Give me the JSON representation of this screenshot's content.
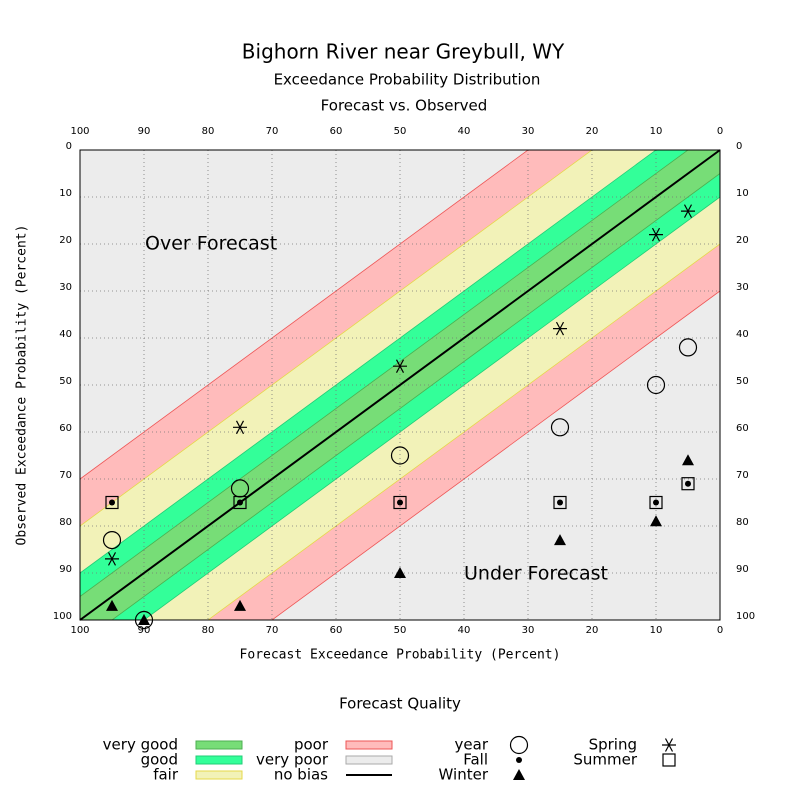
{
  "chart_data": {
    "type": "scatter",
    "title": "Bighorn River near Greybull, WY",
    "subtitle": [
      "Exceedance Probability Distribution",
      "Forecast vs. Observed"
    ],
    "xlabel": "Forecast Exceedance Probability (Percent)",
    "ylabel": "Observed Exceedance Probability (Percent)",
    "annotations": [
      "Over Forecast",
      "Under Forecast"
    ],
    "xlim": [
      100,
      0
    ],
    "ylim": [
      100,
      0
    ],
    "xticks": [
      100,
      90,
      80,
      70,
      60,
      50,
      40,
      30,
      20,
      10,
      0
    ],
    "yticks": [
      0,
      10,
      20,
      30,
      40,
      50,
      60,
      70,
      80,
      90,
      100
    ],
    "grid": true,
    "legend_title": "Forecast Quality",
    "bands": [
      {
        "name": "very good",
        "color": "#77dd77",
        "edge": "#4caf50",
        "width": 5
      },
      {
        "name": "good",
        "color": "#33ff99",
        "edge": "#22cc77",
        "width": 10
      },
      {
        "name": "fair",
        "color": "#f2f2b8",
        "edge": "#e6d84a",
        "width": 20
      },
      {
        "name": "poor",
        "color": "#ffbbbb",
        "edge": "#ee5555",
        "width": 30
      }
    ],
    "background": {
      "name": "very poor",
      "color": "#ececec"
    },
    "diagonal": {
      "name": "no bias",
      "color": "#000000"
    },
    "series": [
      {
        "name": "year",
        "marker": "circle",
        "x": [
          95,
          90,
          75,
          50,
          25,
          10,
          5
        ],
        "values": [
          83,
          100,
          72,
          65,
          59,
          50,
          42
        ]
      },
      {
        "name": "Fall",
        "marker": "dot",
        "x": [
          95,
          75,
          50,
          25,
          10,
          5
        ],
        "values": [
          75,
          75,
          75,
          75,
          75,
          71
        ]
      },
      {
        "name": "Winter",
        "marker": "triangle",
        "x": [
          95,
          90,
          75,
          50,
          25,
          10,
          5
        ],
        "values": [
          97,
          100,
          97,
          90,
          83,
          79,
          66
        ]
      },
      {
        "name": "Spring",
        "marker": "asterisk",
        "x": [
          95,
          75,
          50,
          25,
          10,
          5
        ],
        "values": [
          87,
          59,
          46,
          38,
          18,
          13
        ]
      },
      {
        "name": "Summer",
        "marker": "square",
        "x": [
          95,
          75,
          50,
          25,
          10,
          5
        ],
        "values": [
          75,
          75,
          75,
          75,
          75,
          71
        ]
      }
    ]
  }
}
